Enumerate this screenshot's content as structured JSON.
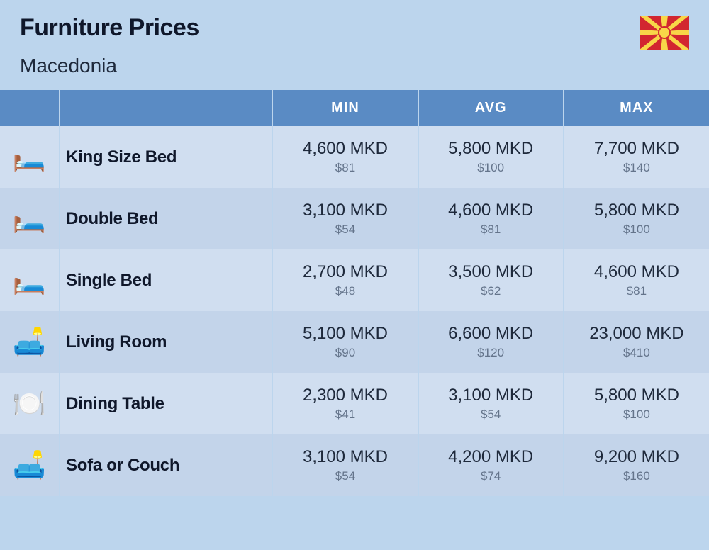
{
  "header": {
    "title": "Furniture Prices",
    "country": "Macedonia"
  },
  "flag": {
    "bg_color": "#d22630",
    "sun_color": "#f8d648"
  },
  "columns": [
    "MIN",
    "AVG",
    "MAX"
  ],
  "rows": [
    {
      "icon": "🛏️",
      "name": "King Size Bed",
      "min": {
        "local": "4,600 MKD",
        "usd": "$81"
      },
      "avg": {
        "local": "5,800 MKD",
        "usd": "$100"
      },
      "max": {
        "local": "7,700 MKD",
        "usd": "$140"
      }
    },
    {
      "icon": "🛏️",
      "name": "Double Bed",
      "min": {
        "local": "3,100 MKD",
        "usd": "$54"
      },
      "avg": {
        "local": "4,600 MKD",
        "usd": "$81"
      },
      "max": {
        "local": "5,800 MKD",
        "usd": "$100"
      }
    },
    {
      "icon": "🛏️",
      "name": "Single Bed",
      "min": {
        "local": "2,700 MKD",
        "usd": "$48"
      },
      "avg": {
        "local": "3,500 MKD",
        "usd": "$62"
      },
      "max": {
        "local": "4,600 MKD",
        "usd": "$81"
      }
    },
    {
      "icon": "🛋️",
      "name": "Living Room",
      "min": {
        "local": "5,100 MKD",
        "usd": "$90"
      },
      "avg": {
        "local": "6,600 MKD",
        "usd": "$120"
      },
      "max": {
        "local": "23,000 MKD",
        "usd": "$410"
      }
    },
    {
      "icon": "🍽️",
      "name": "Dining Table",
      "min": {
        "local": "2,300 MKD",
        "usd": "$41"
      },
      "avg": {
        "local": "3,100 MKD",
        "usd": "$54"
      },
      "max": {
        "local": "5,800 MKD",
        "usd": "$100"
      }
    },
    {
      "icon": "🛋️",
      "name": "Sofa or Couch",
      "min": {
        "local": "3,100 MKD",
        "usd": "$54"
      },
      "avg": {
        "local": "4,200 MKD",
        "usd": "$74"
      },
      "max": {
        "local": "9,200 MKD",
        "usd": "$160"
      }
    }
  ],
  "styling": {
    "page_bg": "#bcd5ed",
    "header_title_color": "#0f172a",
    "header_title_fontsize": 34,
    "country_color": "#1e293b",
    "country_fontsize": 28,
    "th_bg": "#5a8bc4",
    "th_color": "#ffffff",
    "th_fontsize": 20,
    "row_odd_bg": "#d0def0",
    "row_even_bg": "#c3d4ea",
    "cell_border": "#bcd5ed",
    "name_fontsize": 24,
    "name_color": "#0f172a",
    "price_local_fontsize": 24,
    "price_local_color": "#1e293b",
    "price_usd_fontsize": 17,
    "price_usd_color": "#64748b",
    "icon_fontsize": 38
  }
}
